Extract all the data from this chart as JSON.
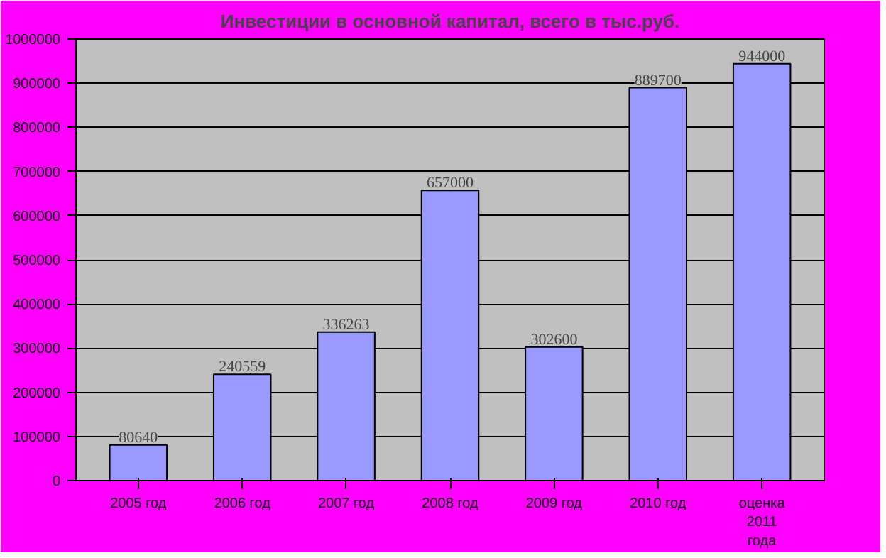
{
  "chart_data": {
    "type": "bar",
    "title": "Инвестиции в основной капитал, всего в тыс.руб.",
    "categories": [
      "2005 год",
      "2006 год",
      "2007 год",
      "2008 год",
      "2009 год",
      "2010 год",
      "оценка 2011 года"
    ],
    "values": [
      80640,
      240559,
      336263,
      657000,
      302600,
      889700,
      944000
    ],
    "color": "#9999ff",
    "ylim": [
      0,
      1000000
    ],
    "yticks": [
      0,
      100000,
      200000,
      300000,
      400000,
      500000,
      600000,
      700000,
      800000,
      900000,
      1000000
    ],
    "grid": "y",
    "data_labels": true
  }
}
